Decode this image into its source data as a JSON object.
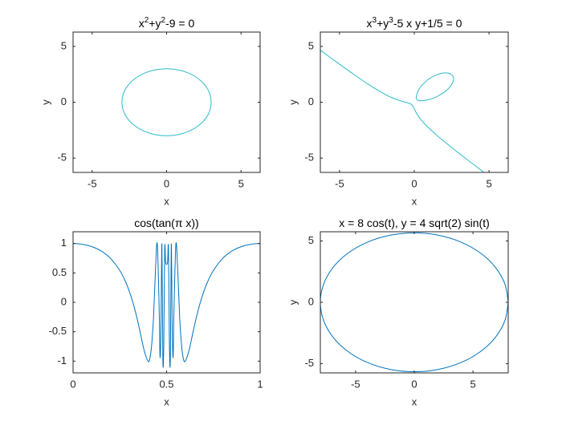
{
  "chart_data": [
    {
      "type": "line",
      "title": [
        {
          "text": "x"
        },
        {
          "text": "2",
          "sup": true
        },
        {
          "text": "+y"
        },
        {
          "text": "2",
          "sup": true
        },
        {
          "text": "-9 = 0"
        }
      ],
      "xlabel": "x",
      "ylabel": "y",
      "xlim": [
        -6.2832,
        6.2832
      ],
      "ylim": [
        -6.2832,
        6.2832
      ],
      "xticks": [
        -5,
        0,
        5
      ],
      "yticks": [
        -5,
        0,
        5
      ],
      "series": [
        {
          "color": "#2bbccc",
          "x": [
            3,
            2.898,
            2.598,
            2.121,
            1.5,
            0.776,
            0,
            -0.776,
            -1.5,
            -2.121,
            -2.598,
            -2.898,
            -3,
            -2.898,
            -2.598,
            -2.121,
            -1.5,
            -0.776,
            0,
            0.776,
            1.5,
            2.121,
            2.598,
            2.898,
            3
          ],
          "values": [
            0,
            0.776,
            1.5,
            2.121,
            2.598,
            2.898,
            3,
            2.898,
            2.598,
            2.121,
            1.5,
            0.776,
            0,
            -0.776,
            -1.5,
            -2.121,
            -2.598,
            -2.898,
            -3,
            -2.898,
            -2.598,
            -2.121,
            -1.5,
            -0.776,
            0
          ]
        }
      ]
    },
    {
      "type": "line",
      "title": [
        {
          "text": "x"
        },
        {
          "text": "3",
          "sup": true
        },
        {
          "text": "+y"
        },
        {
          "text": "3",
          "sup": true
        },
        {
          "text": "-5 x y+1/5 = 0"
        }
      ],
      "xlabel": "x",
      "ylabel": "y",
      "xlim": [
        -6.2832,
        6.2832
      ],
      "ylim": [
        -6.2832,
        6.2832
      ],
      "xticks": [
        -5,
        0,
        5
      ],
      "yticks": [
        -5,
        0,
        5
      ],
      "series": [
        {
          "color": "#2bbccc",
          "x": [
            -6.2832,
            -5,
            -4,
            -3,
            -2,
            -1.5,
            -1,
            -0.7,
            -0.5,
            -0.35,
            -0.25,
            -0.193,
            -0.145,
            -0.089,
            -0.03,
            0.041,
            0.159,
            0.414,
            0.739,
            1.541,
            2.452,
            3.407,
            4.662
          ],
          "values": [
            4.662,
            3.407,
            2.452,
            1.541,
            0.739,
            0.414,
            0.159,
            0.041,
            -0.03,
            -0.089,
            -0.145,
            -0.193,
            -0.25,
            -0.35,
            -0.5,
            -0.7,
            -1,
            -1.5,
            -2,
            -3,
            -4,
            -5,
            -6.2832
          ]
        },
        {
          "color": "#2bbccc",
          "x": [
            0.209,
            0.3,
            0.5,
            1,
            1.141,
            1.5,
            2,
            2.105,
            2.4,
            2.6,
            2.627,
            2.6,
            2.549,
            2.484,
            2.4,
            2.284,
            2.093,
            1.873,
            1.395,
            1,
            0.891,
            0.5,
            0.493,
            0.3,
            0.243,
            0.131,
            0.154,
            0.209
          ],
          "values": [
            0.209,
            0.154,
            0.131,
            0.243,
            0.3,
            0.493,
            0.891,
            1,
            1.395,
            1.873,
            2.093,
            2.284,
            2.4,
            2.484,
            2.549,
            2.6,
            2.627,
            2.6,
            2.4,
            2.105,
            2,
            1.512,
            1.5,
            1.141,
            1,
            0.5,
            0.3,
            0.209
          ]
        }
      ]
    },
    {
      "type": "line",
      "title": [
        {
          "text": "cos(tan(π x))"
        }
      ],
      "xlabel": "x",
      "xlim": [
        0,
        1
      ],
      "ylim": [
        -1.2,
        1.2
      ],
      "xticks": [
        0,
        0.5,
        1
      ],
      "yticks": [
        -1,
        -0.5,
        0,
        0.5,
        1
      ],
      "series": [
        {
          "color": "#0072bd",
          "x": [
            0,
            0.05,
            0.1,
            0.15,
            0.2,
            0.25,
            0.28,
            0.3,
            0.32,
            0.34,
            0.36,
            0.38,
            0.4,
            0.41,
            0.42,
            0.43,
            0.44,
            0.45,
            0.46,
            0.465,
            0.47,
            0.475,
            0.48,
            0.485,
            0.49,
            0.495,
            0.505,
            0.51,
            0.515,
            0.52,
            0.525,
            0.53,
            0.535,
            0.54,
            0.55,
            0.56,
            0.57,
            0.58,
            0.59,
            0.6,
            0.62,
            0.64,
            0.66,
            0.68,
            0.7,
            0.72,
            0.75,
            0.8,
            0.85,
            0.9,
            0.95,
            1
          ],
          "values": [
            1,
            0.9875,
            0.9477,
            0.873,
            0.7475,
            0.5403,
            0.3546,
            0.1932,
            -0.005,
            -0.2433,
            -0.5262,
            -0.8166,
            -0.9977,
            -0.965,
            -0.7286,
            -0.262,
            0.5075,
            0.9995,
            -0.0618,
            -0.9335,
            -0.4048,
            0.9902,
            -0.9814,
            -0.7059,
            0.919,
            0.676,
            0.676,
            0.919,
            -0.7059,
            -0.9814,
            0.9902,
            -0.4048,
            -0.9335,
            -0.0618,
            0.9995,
            0.5075,
            -0.262,
            -0.7286,
            -0.965,
            -0.9977,
            -0.8166,
            -0.5262,
            -0.2433,
            -0.005,
            0.1932,
            0.3546,
            0.5403,
            0.7475,
            0.873,
            0.9477,
            0.9875,
            1
          ]
        }
      ]
    },
    {
      "type": "line",
      "title": [
        {
          "text": "x = 8 cos(t), y = 4 sqrt(2) sin(t)"
        }
      ],
      "xlabel": "x",
      "ylabel": "y",
      "xlim": [
        -8,
        8
      ],
      "ylim": [
        -5.75,
        5.75
      ],
      "xticks": [
        -5,
        0,
        5
      ],
      "yticks": [
        -5,
        0,
        5
      ],
      "series": [
        {
          "color": "#0072bd",
          "x": [
            8,
            7.727,
            6.928,
            5.657,
            4,
            2.071,
            0,
            -2.071,
            -4,
            -5.657,
            -6.928,
            -7.727,
            -8,
            -7.727,
            -6.928,
            -5.657,
            -4,
            -2.071,
            0,
            2.071,
            4,
            5.657,
            6.928,
            7.727,
            8
          ],
          "values": [
            0,
            1.464,
            2.828,
            4,
            4.899,
            5.464,
            5.657,
            5.464,
            4.899,
            4,
            2.828,
            1.464,
            0,
            -1.464,
            -2.828,
            -4,
            -4.899,
            -5.464,
            -5.657,
            -5.464,
            -4.899,
            -4,
            -2.828,
            -1.464,
            0
          ]
        }
      ]
    }
  ]
}
